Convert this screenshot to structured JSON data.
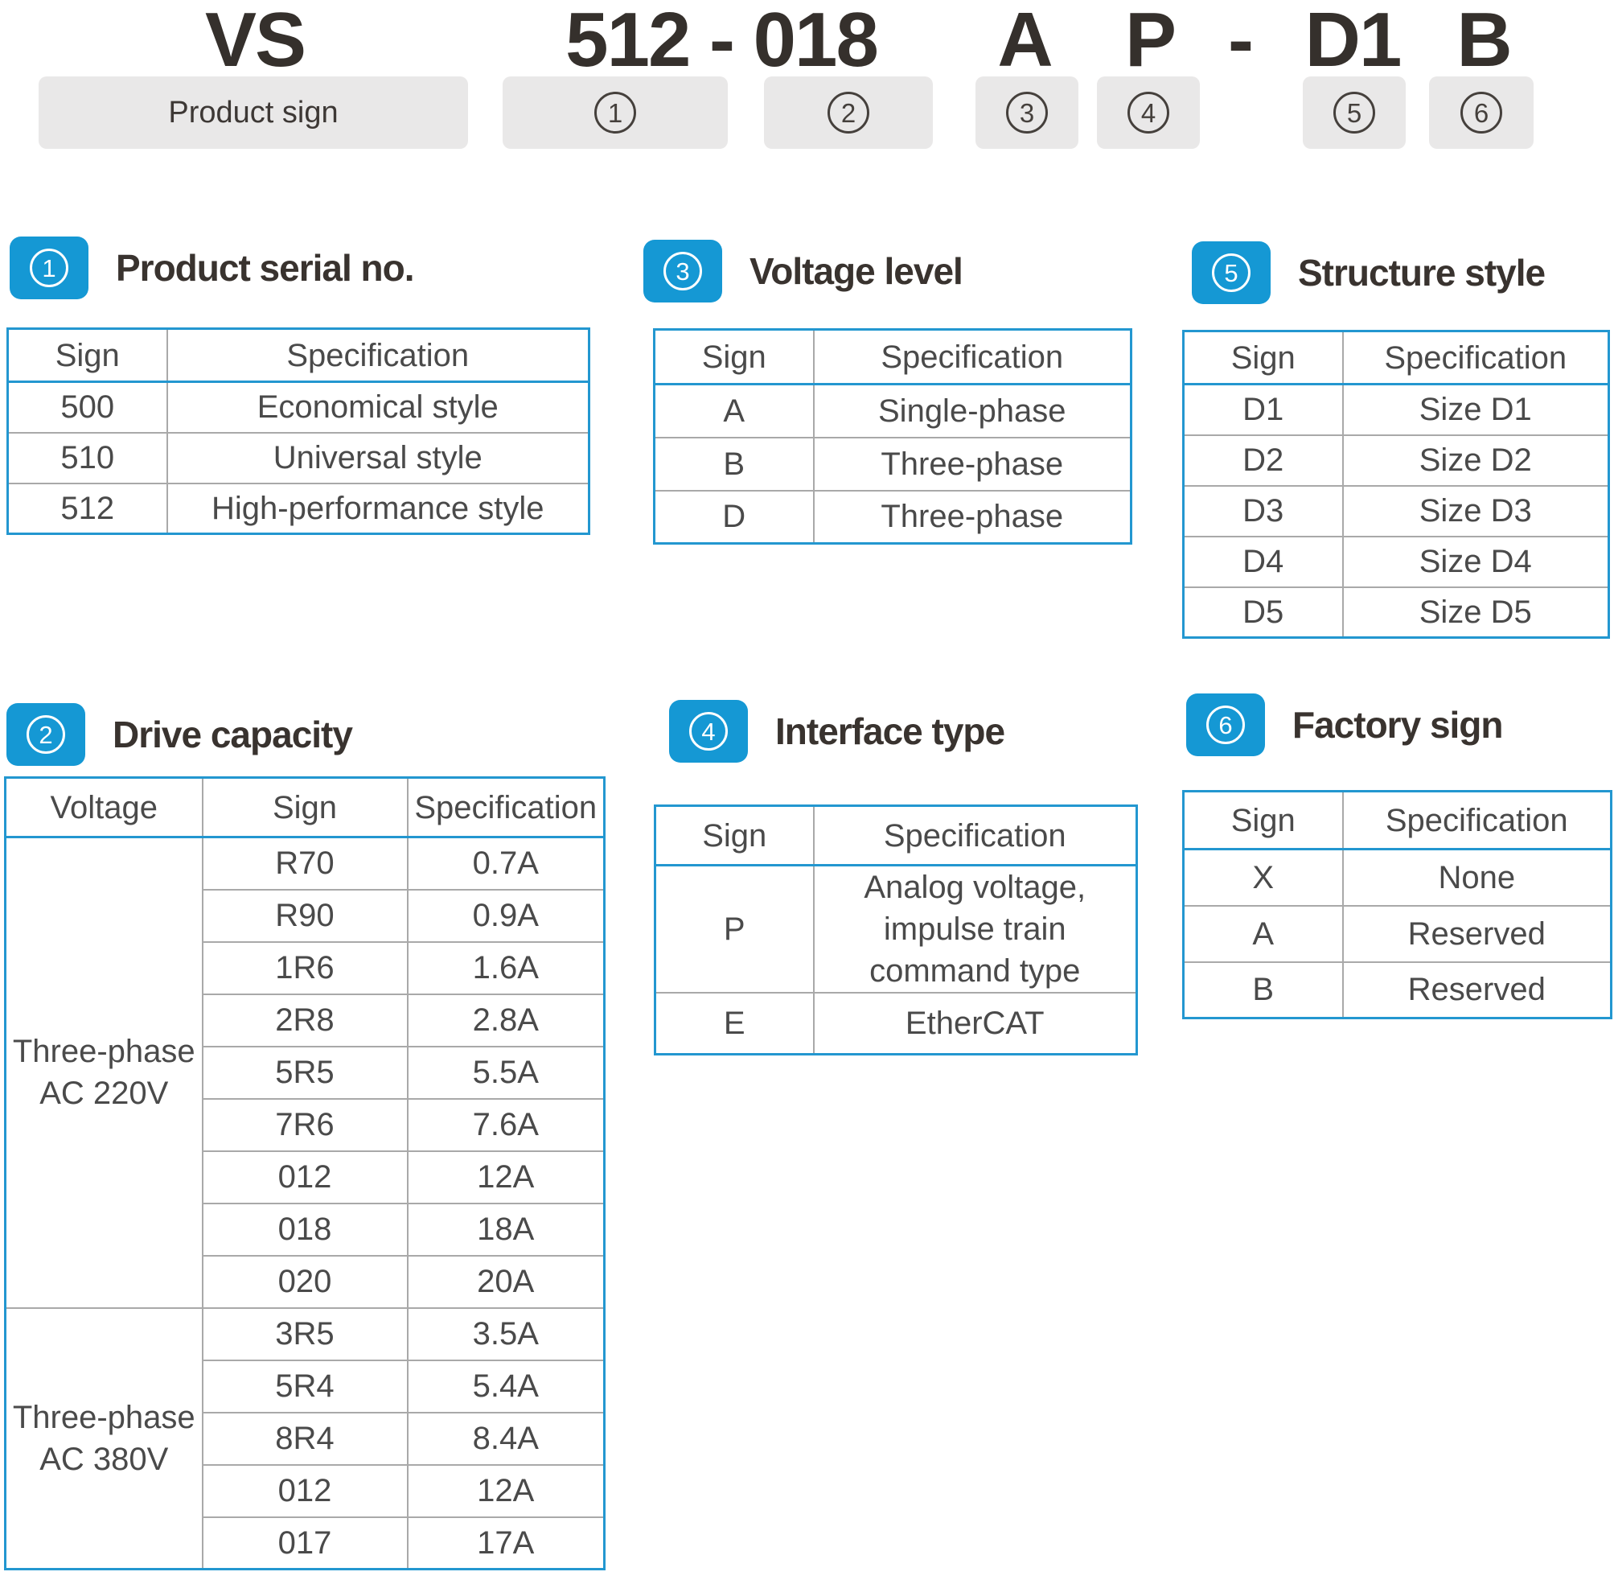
{
  "colors": {
    "accent_blue": "#1598d4",
    "table_border_blue": "#2397d0",
    "inner_line_gray": "#a9a9a9",
    "dark_text": "#35302c",
    "body_text": "#4a4a4a",
    "label_box_bg": "#e9e8e8"
  },
  "model_code": {
    "product": "VS",
    "serial_capacity": "512 - 018",
    "voltage": "A",
    "interface": "P",
    "dash": "-",
    "structure": "D1",
    "factory": "B",
    "product_label": "Product sign",
    "position_labels": [
      "1",
      "2",
      "3",
      "4",
      "5",
      "6"
    ]
  },
  "sections": {
    "serial": {
      "num": "1",
      "title": "Product serial no.",
      "columns": [
        "Sign",
        "Specification"
      ],
      "rows": [
        [
          "500",
          "Economical style"
        ],
        [
          "510",
          "Universal style"
        ],
        [
          "512",
          "High-performance style"
        ]
      ]
    },
    "voltage": {
      "num": "3",
      "title": "Voltage level",
      "columns": [
        "Sign",
        "Specification"
      ],
      "rows": [
        [
          "A",
          "Single-phase"
        ],
        [
          "B",
          "Three-phase"
        ],
        [
          "D",
          "Three-phase"
        ]
      ]
    },
    "structure": {
      "num": "5",
      "title": "Structure style",
      "columns": [
        "Sign",
        "Specification"
      ],
      "rows": [
        [
          "D1",
          "Size D1"
        ],
        [
          "D2",
          "Size D2"
        ],
        [
          "D3",
          "Size D3"
        ],
        [
          "D4",
          "Size D4"
        ],
        [
          "D5",
          "Size D5"
        ]
      ]
    },
    "capacity": {
      "num": "2",
      "title": "Drive capacity",
      "columns": [
        "Voltage",
        "Sign",
        "Specification"
      ],
      "groups": [
        {
          "voltage_line1": "Three-phase",
          "voltage_line2": "AC 220V",
          "rows": [
            [
              "R70",
              "0.7A"
            ],
            [
              "R90",
              "0.9A"
            ],
            [
              "1R6",
              "1.6A"
            ],
            [
              "2R8",
              "2.8A"
            ],
            [
              "5R5",
              "5.5A"
            ],
            [
              "7R6",
              "7.6A"
            ],
            [
              "012",
              "12A"
            ],
            [
              "018",
              "18A"
            ],
            [
              "020",
              "20A"
            ]
          ]
        },
        {
          "voltage_line1": "Three-phase",
          "voltage_line2": "AC 380V",
          "rows": [
            [
              "3R5",
              "3.5A"
            ],
            [
              "5R4",
              "5.4A"
            ],
            [
              "8R4",
              "8.4A"
            ],
            [
              "012",
              "12A"
            ],
            [
              "017",
              "17A"
            ]
          ]
        }
      ]
    },
    "interface": {
      "num": "4",
      "title": "Interface type",
      "columns": [
        "Sign",
        "Specification"
      ],
      "rows": [
        [
          "P",
          "Analog voltage, impulse train command type"
        ],
        [
          "E",
          "EtherCAT"
        ]
      ]
    },
    "factory": {
      "num": "6",
      "title": "Factory sign",
      "columns": [
        "Sign",
        "Specification"
      ],
      "rows": [
        [
          "X",
          "None"
        ],
        [
          "A",
          "Reserved"
        ],
        [
          "B",
          "Reserved"
        ]
      ]
    }
  }
}
